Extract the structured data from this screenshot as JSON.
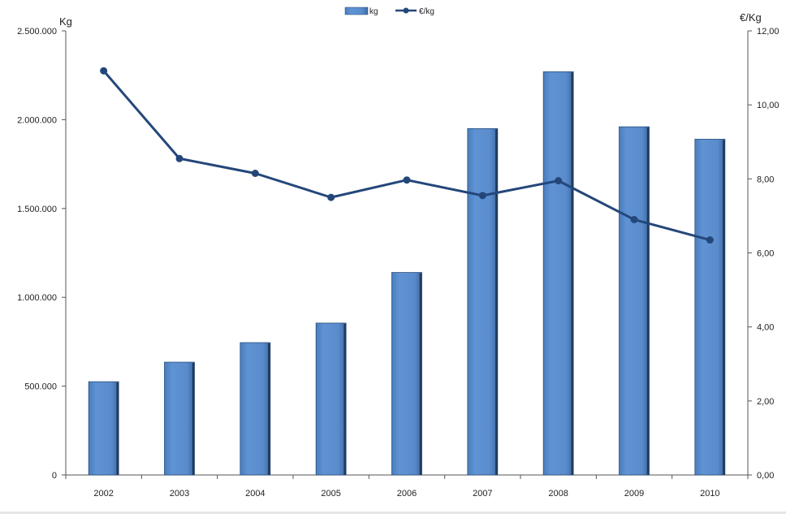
{
  "chart_data": {
    "type": "bar",
    "categories": [
      "2002",
      "2003",
      "2004",
      "2005",
      "2006",
      "2007",
      "2008",
      "2009",
      "2010"
    ],
    "series": [
      {
        "name": "kg",
        "type": "bar",
        "axis": "left",
        "values": [
          525000,
          635000,
          745000,
          855000,
          1140000,
          1950000,
          2270000,
          1960000,
          1890000
        ]
      },
      {
        "name": "€/kg",
        "type": "line",
        "axis": "right",
        "values": [
          10.92,
          8.55,
          8.15,
          7.5,
          7.97,
          7.55,
          7.95,
          6.9,
          6.35
        ]
      }
    ],
    "ylabel": "Kg",
    "y2label": "€/Kg",
    "ylim": [
      0,
      2500000
    ],
    "y2lim": [
      0,
      12
    ],
    "yticks": [
      "0",
      "500.000",
      "1.000.000",
      "1.500.000",
      "2.000.000",
      "2.500.000"
    ],
    "y2ticks": [
      "0,00",
      "2,00",
      "4,00",
      "6,00",
      "8,00",
      "10,00",
      "12,00"
    ],
    "legend_position": "top-center",
    "grid": false,
    "colors": {
      "bar_fill": "#5b8fd0",
      "bar_edge": "#2a4d7a",
      "line": "#24477a",
      "axis": "#555555"
    }
  }
}
